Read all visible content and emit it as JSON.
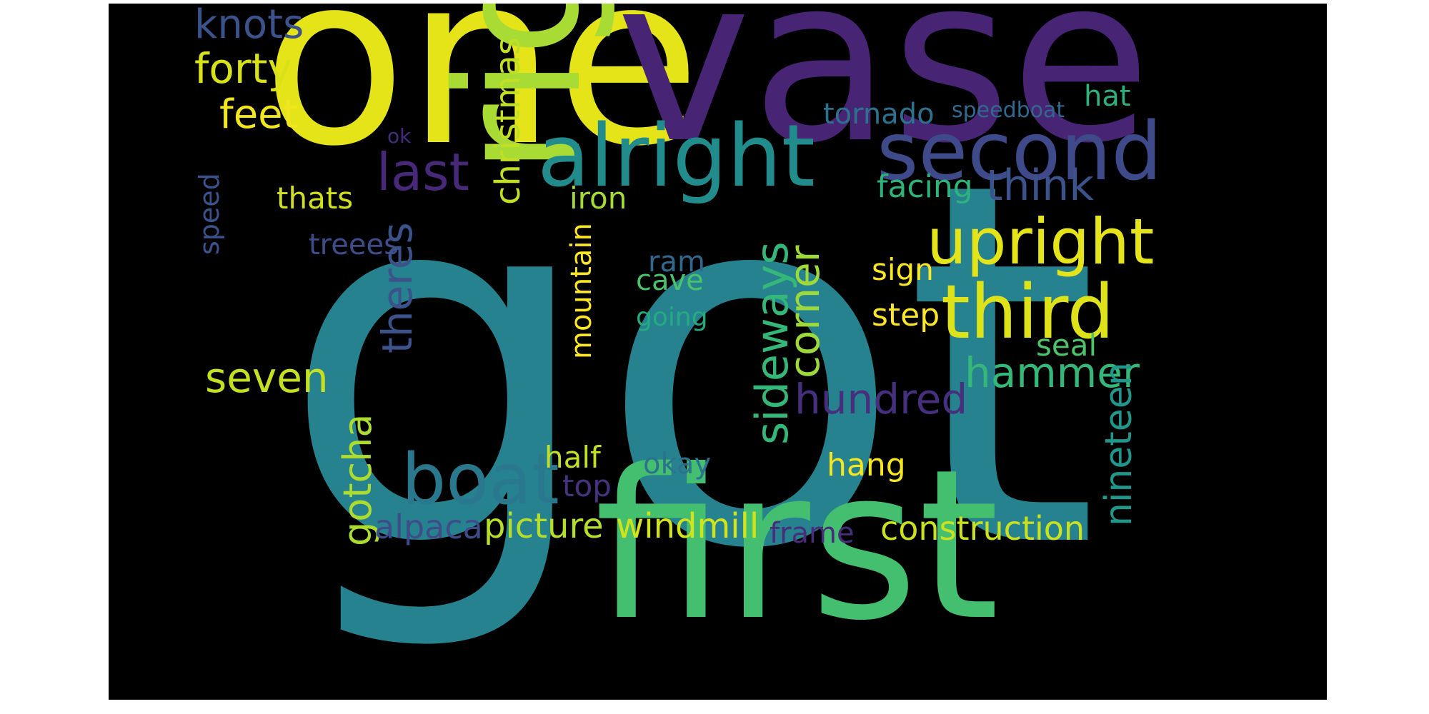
{
  "background": "#000000",
  "colormap": "viridis",
  "words": [
    {
      "text": "got",
      "color": "#26828e"
    },
    {
      "text": "one",
      "color": "#e4e419"
    },
    {
      "text": "vase",
      "color": "#482475"
    },
    {
      "text": "first",
      "color": "#44bf70"
    },
    {
      "text": "right",
      "color": "#a8db34"
    },
    {
      "text": "alright",
      "color": "#228c8d"
    },
    {
      "text": "second",
      "color": "#3e4a89"
    },
    {
      "text": "third",
      "color": "#dde318"
    },
    {
      "text": "upright",
      "color": "#e5e419"
    },
    {
      "text": "boat",
      "color": "#2a788e"
    },
    {
      "text": "last",
      "color": "#482878"
    },
    {
      "text": "knots",
      "color": "#3b528b"
    },
    {
      "text": "forty",
      "color": "#d8e219"
    },
    {
      "text": "feet",
      "color": "#f1e51d"
    },
    {
      "text": "christmas",
      "color": "#c0df25"
    },
    {
      "text": "thats",
      "color": "#d0e11c"
    },
    {
      "text": "treees",
      "color": "#3e4c8a"
    },
    {
      "text": "theres",
      "color": "#3b528b"
    },
    {
      "text": "seven",
      "color": "#c5e021"
    },
    {
      "text": "gotcha",
      "color": "#addc30"
    },
    {
      "text": "alpaca",
      "color": "#3e4c8a"
    },
    {
      "text": "picture",
      "color": "#b5de2b"
    },
    {
      "text": "windmill",
      "color": "#d2e21b"
    },
    {
      "text": "frame",
      "color": "#472d7b"
    },
    {
      "text": "construction",
      "color": "#cae11f"
    },
    {
      "text": "hundred",
      "color": "#46307e"
    },
    {
      "text": "hammer",
      "color": "#35b779"
    },
    {
      "text": "nineteen",
      "color": "#1f988b"
    },
    {
      "text": "sideways",
      "color": "#35b779"
    },
    {
      "text": "corner",
      "color": "#9dd93b"
    },
    {
      "text": "think",
      "color": "#3b528b"
    },
    {
      "text": "facing",
      "color": "#2eb37c"
    },
    {
      "text": "sign",
      "color": "#fde725"
    },
    {
      "text": "step",
      "color": "#fde725"
    },
    {
      "text": "seal",
      "color": "#4ec36b"
    },
    {
      "text": "hat",
      "color": "#2db27d"
    },
    {
      "text": "tornado",
      "color": "#2c728e"
    },
    {
      "text": "speedboat",
      "color": "#31688e"
    },
    {
      "text": "iron",
      "color": "#a5db36"
    },
    {
      "text": "mountain",
      "color": "#fde725"
    },
    {
      "text": "ram",
      "color": "#31688e"
    },
    {
      "text": "cave",
      "color": "#4ac16d"
    },
    {
      "text": "going",
      "color": "#25ab82"
    },
    {
      "text": "half",
      "color": "#c2df23"
    },
    {
      "text": "okay",
      "color": "#2c728e"
    },
    {
      "text": "top",
      "color": "#46327e"
    },
    {
      "text": "hang",
      "color": "#f6e620"
    },
    {
      "text": "speed",
      "color": "#3b528b"
    },
    {
      "text": "ok",
      "color": "#472c7a"
    }
  ]
}
